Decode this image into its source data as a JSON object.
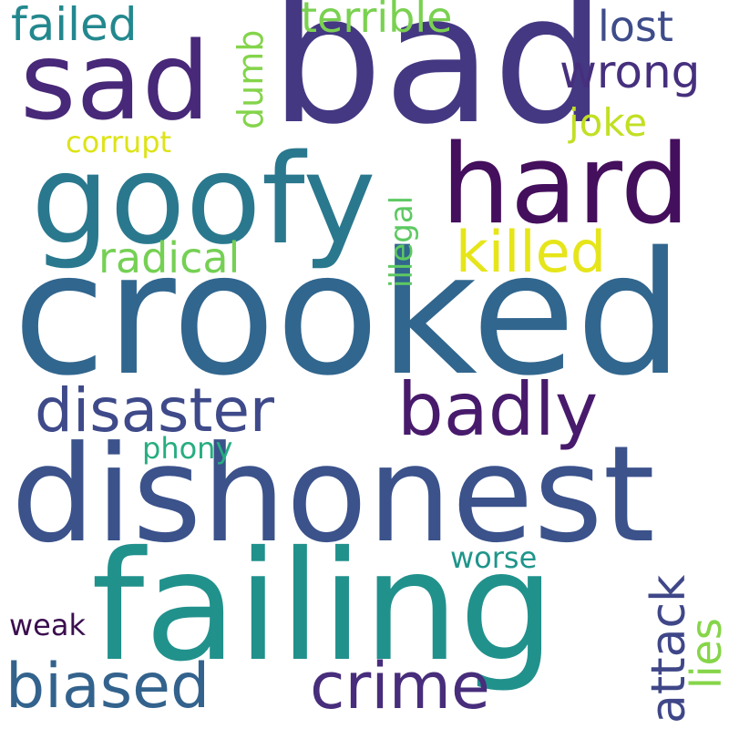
{
  "words": {
    "bad": {
      "text": "bad",
      "color": "#453882"
    },
    "crooked": {
      "text": "crooked",
      "color": "#31668e"
    },
    "dishonest": {
      "text": "dishonest",
      "color": "#3b528b"
    },
    "failing": {
      "text": "failing",
      "color": "#21918c"
    },
    "goofy": {
      "text": "goofy",
      "color": "#2a788e"
    },
    "sad": {
      "text": "sad",
      "color": "#482878"
    },
    "hard": {
      "text": "hard",
      "color": "#440f5c"
    },
    "badly": {
      "text": "badly",
      "color": "#481a6c"
    },
    "disaster": {
      "text": "disaster",
      "color": "#3e4a89"
    },
    "crime": {
      "text": "crime",
      "color": "#472d7b"
    },
    "biased": {
      "text": "biased",
      "color": "#33638d"
    },
    "killed": {
      "text": "killed",
      "color": "#e6e51a"
    },
    "wrong": {
      "text": "wrong",
      "color": "#46307e"
    },
    "failed": {
      "text": "failed",
      "color": "#23888e"
    },
    "terrible": {
      "text": "terrible",
      "color": "#7ad151"
    },
    "lost": {
      "text": "lost",
      "color": "#3e4c8a"
    },
    "radical": {
      "text": "radical",
      "color": "#75d054"
    },
    "joke": {
      "text": "joke",
      "color": "#c2df23"
    },
    "attack": {
      "text": "attack",
      "color": "#3f4788"
    },
    "lies": {
      "text": "lies",
      "color": "#86d549"
    },
    "dumb": {
      "text": "dumb",
      "color": "#84d44b"
    },
    "illegal": {
      "text": "illegal",
      "color": "#5ec962"
    },
    "corrupt": {
      "text": "corrupt",
      "color": "#dde318"
    },
    "phony": {
      "text": "phony",
      "color": "#26ad81"
    },
    "worse": {
      "text": "worse",
      "color": "#1f958b"
    },
    "weak": {
      "text": "weak",
      "color": "#3b0f4f"
    }
  }
}
